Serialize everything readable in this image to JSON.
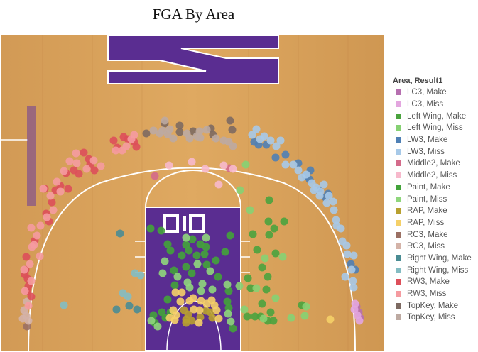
{
  "chart_data": {
    "type": "scatter",
    "title": "FGA By Area",
    "legend": {
      "title": "Area, Result1",
      "placement": "right",
      "entries": [
        {
          "label": "LC3, Make",
          "color": "#b66fb0"
        },
        {
          "label": "LC3, Miss",
          "color": "#e3a6df"
        },
        {
          "label": "Left Wing, Make",
          "color": "#4aa33e"
        },
        {
          "label": "Left Wing, Miss",
          "color": "#86d173"
        },
        {
          "label": "LW3, Make",
          "color": "#4f80b5"
        },
        {
          "label": "LW3, Miss",
          "color": "#a7c9e8"
        },
        {
          "label": "Middle2, Make",
          "color": "#d46b8b"
        },
        {
          "label": "Middle2, Miss",
          "color": "#f7b9cc"
        },
        {
          "label": "Paint, Make",
          "color": "#43a33a"
        },
        {
          "label": "Paint, Miss",
          "color": "#8fd67c"
        },
        {
          "label": "RAP, Make",
          "color": "#b8a030"
        },
        {
          "label": "RAP, Miss",
          "color": "#f5d068"
        },
        {
          "label": "RC3, Make",
          "color": "#9b7063"
        },
        {
          "label": "RC3, Miss",
          "color": "#d4b3a8"
        },
        {
          "label": "Right Wing, Make",
          "color": "#4a8c93"
        },
        {
          "label": "Right Wing, Miss",
          "color": "#83bcc2"
        },
        {
          "label": "RW3, Make",
          "color": "#dd4f5a"
        },
        {
          "label": "RW3, Miss",
          "color": "#f59ba0"
        },
        {
          "label": "TopKey, Make",
          "color": "#7d6a62"
        },
        {
          "label": "TopKey, Miss",
          "color": "#bdaaa2"
        }
      ]
    },
    "x_range": [
      0,
      540
    ],
    "y_range": [
      0,
      450
    ],
    "grid": false,
    "series": [
      {
        "name": "LC3, Make",
        "color": "#b66fb0",
        "points": [
          [
            502,
            432
          ],
          [
            505,
            440
          ],
          [
            507,
            448
          ]
        ]
      },
      {
        "name": "LC3, Miss",
        "color": "#e3a6df",
        "points": [
          [
            500,
            428
          ],
          [
            503,
            444
          ],
          [
            506,
            452
          ],
          [
            499,
            436
          ]
        ]
      },
      {
        "name": "Left Wing, Make",
        "color": "#4aa33e",
        "points": [
          [
            379,
            282
          ],
          [
            378,
            312
          ],
          [
            400,
            312
          ],
          [
            386,
            322
          ],
          [
            356,
            330
          ],
          [
            379,
            331
          ],
          [
            362,
            352
          ],
          [
            388,
            357
          ],
          [
            369,
            377
          ],
          [
            377,
            390
          ],
          [
            349,
            392
          ],
          [
            353,
            406
          ],
          [
            375,
            408
          ],
          [
            369,
            428
          ],
          [
            381,
            440
          ],
          [
            367,
            446
          ],
          [
            385,
            452
          ],
          [
            359,
            446
          ],
          [
            425,
            430
          ],
          [
            348,
            446
          ],
          [
            377,
            452
          ]
        ]
      },
      {
        "name": "Left Wing, Miss",
        "color": "#86d173",
        "points": [
          [
            346,
            232
          ],
          [
            338,
            268
          ],
          [
            352,
            296
          ],
          [
            373,
            364
          ],
          [
            398,
            362
          ],
          [
            361,
            406
          ],
          [
            388,
            420
          ],
          [
            431,
            432
          ],
          [
            429,
            445
          ],
          [
            410,
            448
          ],
          [
            371,
            449
          ],
          [
            337,
            403
          ],
          [
            344,
            436
          ]
        ]
      },
      {
        "name": "LW3, Make",
        "color": "#4f80b5",
        "points": [
          [
            358,
            200
          ],
          [
            364,
            204
          ],
          [
            375,
            204
          ],
          [
            388,
            222
          ],
          [
            402,
            218
          ],
          [
            420,
            230
          ],
          [
            437,
            240
          ],
          [
            449,
            268
          ],
          [
            458,
            278
          ],
          [
            436,
            253
          ],
          [
            462,
            273
          ],
          [
            494,
            372
          ],
          [
            500,
            380
          ],
          [
            430,
            248
          ]
        ]
      },
      {
        "name": "LW3, Miss",
        "color": "#a7c9e8",
        "points": [
          [
            355,
            190
          ],
          [
            361,
            182
          ],
          [
            366,
            196
          ],
          [
            372,
            192
          ],
          [
            381,
            198
          ],
          [
            389,
            206
          ],
          [
            395,
            198
          ],
          [
            402,
            232
          ],
          [
            413,
            232
          ],
          [
            420,
            240
          ],
          [
            425,
            250
          ],
          [
            431,
            246
          ],
          [
            439,
            258
          ],
          [
            445,
            264
          ],
          [
            451,
            270
          ],
          [
            456,
            260
          ],
          [
            463,
            276
          ],
          [
            469,
            284
          ],
          [
            470,
            296
          ],
          [
            474,
            318
          ],
          [
            480,
            322
          ],
          [
            482,
            340
          ],
          [
            488,
            346
          ],
          [
            489,
            358
          ],
          [
            498,
            360
          ],
          [
            495,
            380
          ],
          [
            497,
            396
          ],
          [
            498,
            405
          ],
          [
            486,
            390
          ],
          [
            460,
            286
          ],
          [
            450,
            276
          ],
          [
            442,
            268
          ],
          [
            473,
            310
          ]
        ]
      },
      {
        "name": "Middle2, Make",
        "color": "#d46b8b",
        "points": [
          [
            218,
            248
          ],
          [
            323,
            237
          ]
        ]
      },
      {
        "name": "Middle2, Miss",
        "color": "#f7b9cc",
        "points": [
          [
            238,
            233
          ],
          [
            270,
            228
          ],
          [
            289,
            238
          ],
          [
            315,
            233
          ],
          [
            308,
            260
          ],
          [
            328,
            238
          ]
        ]
      },
      {
        "name": "Paint, Make",
        "color": "#43a33a",
        "points": [
          [
            212,
            322
          ],
          [
            227,
            325
          ],
          [
            240,
            353
          ],
          [
            236,
            344
          ],
          [
            262,
            345
          ],
          [
            266,
            353
          ],
          [
            271,
            337
          ],
          [
            282,
            344
          ],
          [
            290,
            348
          ],
          [
            288,
            358
          ],
          [
            277,
            360
          ],
          [
            256,
            360
          ],
          [
            291,
            373
          ],
          [
            304,
            367
          ],
          [
            317,
            355
          ],
          [
            324,
            332
          ],
          [
            307,
            390
          ],
          [
            245,
            381
          ],
          [
            262,
            376
          ],
          [
            236,
            422
          ],
          [
            240,
            440
          ],
          [
            233,
            448
          ],
          [
            216,
            444
          ],
          [
            218,
            455
          ],
          [
            322,
            410
          ],
          [
            328,
            463
          ],
          [
            320,
            425
          ],
          [
            322,
            434
          ],
          [
            228,
            440
          ],
          [
            246,
            402
          ],
          [
            270,
            385
          ]
        ]
      },
      {
        "name": "Paint, Miss",
        "color": "#8fd67c",
        "points": [
          [
            232,
            368
          ],
          [
            229,
            385
          ],
          [
            264,
            398
          ],
          [
            285,
            400
          ],
          [
            296,
            382
          ],
          [
            299,
            408
          ],
          [
            283,
            410
          ],
          [
            325,
            453
          ],
          [
            321,
            442
          ],
          [
            213,
            452
          ],
          [
            222,
            460
          ],
          [
            250,
            390
          ],
          [
            278,
            372
          ],
          [
            267,
            405
          ],
          [
            320,
            401
          ],
          [
            290,
            335
          ],
          [
            262,
            335
          ]
        ]
      },
      {
        "name": "RAP, Make",
        "color": "#b8a030",
        "points": [
          [
            259,
            437
          ],
          [
            265,
            443
          ],
          [
            262,
            450
          ],
          [
            290,
            438
          ],
          [
            299,
            448
          ],
          [
            282,
            447
          ],
          [
            262,
            455
          ],
          [
            270,
            452
          ],
          [
            296,
            440
          ]
        ]
      },
      {
        "name": "RAP, Miss",
        "color": "#f5d068",
        "points": [
          [
            247,
            412
          ],
          [
            256,
            412
          ],
          [
            267,
            424
          ],
          [
            272,
            420
          ],
          [
            283,
            424
          ],
          [
            298,
            423
          ],
          [
            244,
            437
          ],
          [
            248,
            444
          ],
          [
            281,
            437
          ],
          [
            291,
            428
          ],
          [
            305,
            437
          ],
          [
            273,
            436
          ],
          [
            239,
            448
          ],
          [
            246,
            451
          ],
          [
            308,
            449
          ],
          [
            302,
            430
          ],
          [
            280,
            455
          ],
          [
            254,
            425
          ],
          [
            465,
            450
          ]
        ]
      },
      {
        "name": "RC3, Make",
        "color": "#9b7063",
        "points": [
          [
            38,
            460
          ]
        ]
      },
      {
        "name": "RC3, Miss",
        "color": "#d4b3a8",
        "points": [
          [
            34,
            437
          ],
          [
            37,
            445
          ],
          [
            40,
            452
          ],
          [
            32,
            449
          ],
          [
            38,
            425
          ]
        ]
      },
      {
        "name": "Right Wing, Make",
        "color": "#4a8c93",
        "points": [
          [
            169,
            329
          ],
          [
            164,
            436
          ],
          [
            182,
            431
          ],
          [
            193,
            436
          ]
        ]
      },
      {
        "name": "Right Wing, Miss",
        "color": "#83bcc2",
        "points": [
          [
            190,
            385
          ],
          [
            173,
            413
          ],
          [
            180,
            418
          ],
          [
            90,
            430
          ],
          [
            198,
            388
          ]
        ]
      },
      {
        "name": "RW3, Make",
        "color": "#dd4f5a",
        "points": [
          [
            174,
            193
          ],
          [
            180,
            196
          ],
          [
            189,
            200
          ],
          [
            192,
            207
          ],
          [
            165,
            208
          ],
          [
            160,
            198
          ],
          [
            118,
            215
          ],
          [
            125,
            224
          ],
          [
            127,
            232
          ],
          [
            133,
            240
          ],
          [
            104,
            240
          ],
          [
            111,
            245
          ],
          [
            93,
            244
          ],
          [
            96,
            266
          ],
          [
            78,
            268
          ],
          [
            85,
            262
          ],
          [
            63,
            266
          ],
          [
            73,
            285
          ],
          [
            65,
            301
          ],
          [
            69,
            312
          ],
          [
            49,
            339
          ],
          [
            37,
            362
          ],
          [
            36,
            380
          ],
          [
            39,
            393
          ],
          [
            40,
            403
          ],
          [
            38,
            410
          ],
          [
            44,
            418
          ],
          [
            35,
            387
          ]
        ]
      },
      {
        "name": "RW3, Miss",
        "color": "#f59ba0",
        "points": [
          [
            189,
            190
          ],
          [
            185,
            196
          ],
          [
            178,
            206
          ],
          [
            172,
            212
          ],
          [
            163,
            212
          ],
          [
            132,
            226
          ],
          [
            142,
            234
          ],
          [
            122,
            238
          ],
          [
            98,
            227
          ],
          [
            108,
            230
          ],
          [
            90,
            241
          ],
          [
            80,
            256
          ],
          [
            71,
            276
          ],
          [
            61,
            266
          ],
          [
            66,
            306
          ],
          [
            57,
            318
          ],
          [
            52,
            332
          ],
          [
            44,
            321
          ],
          [
            48,
            345
          ],
          [
            56,
            361
          ],
          [
            42,
            372
          ],
          [
            34,
            380
          ],
          [
            44,
            396
          ],
          [
            35,
            410
          ],
          [
            40,
            431
          ],
          [
            107,
            216
          ],
          [
            85,
            270
          ],
          [
            75,
            296
          ],
          [
            45,
            348
          ]
        ]
      },
      {
        "name": "TopKey, Make",
        "color": "#7d6a62",
        "points": [
          [
            232,
            174
          ],
          [
            253,
            177
          ],
          [
            272,
            185
          ],
          [
            297,
            181
          ],
          [
            324,
            170
          ],
          [
            327,
            183
          ],
          [
            300,
            190
          ],
          [
            253,
            186
          ],
          [
            206,
            188
          ]
        ]
      },
      {
        "name": "TopKey, Miss",
        "color": "#bdaaa2",
        "points": [
          [
            216,
            184
          ],
          [
            225,
            188
          ],
          [
            236,
            189
          ],
          [
            229,
            184
          ],
          [
            239,
            182
          ],
          [
            244,
            195
          ],
          [
            263,
            188
          ],
          [
            267,
            195
          ],
          [
            281,
            185
          ],
          [
            282,
            194
          ],
          [
            291,
            183
          ],
          [
            304,
            195
          ],
          [
            315,
            198
          ],
          [
            322,
            200
          ],
          [
            328,
            206
          ],
          [
            232,
            170
          ],
          [
            277,
            192
          ]
        ]
      }
    ]
  }
}
